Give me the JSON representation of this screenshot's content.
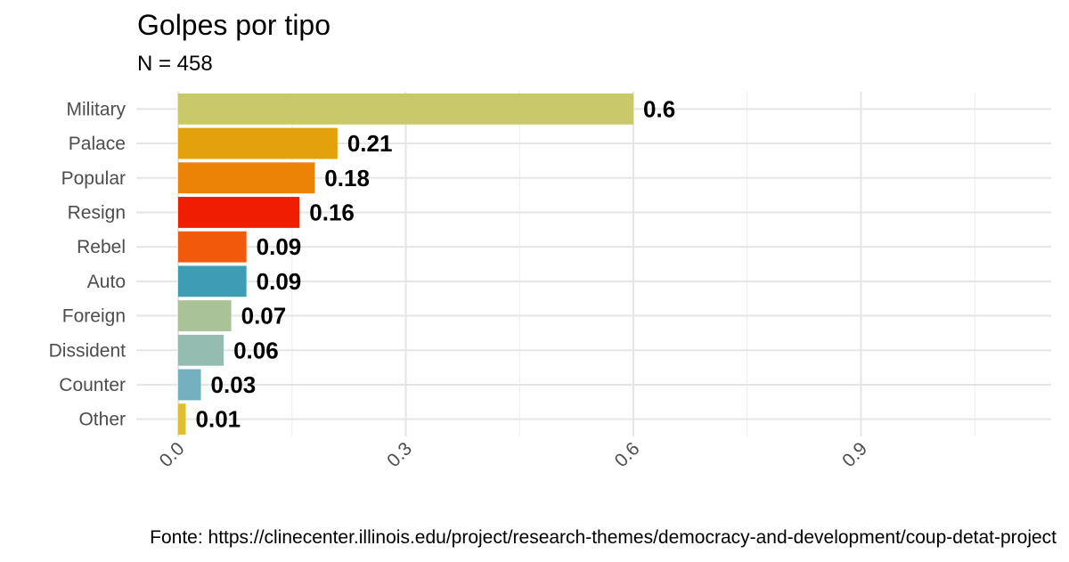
{
  "title": "Golpes por tipo",
  "subtitle": "N = 458",
  "caption": "Fonte: https://clinecenter.illinois.edu/project/research-themes/democracy-and-development/coup-detat-project",
  "chart_data": {
    "type": "bar",
    "orientation": "horizontal",
    "categories": [
      "Military",
      "Palace",
      "Popular",
      "Resign",
      "Rebel",
      "Auto",
      "Foreign",
      "Dissident",
      "Counter",
      "Other"
    ],
    "values": [
      0.6,
      0.21,
      0.18,
      0.16,
      0.09,
      0.09,
      0.07,
      0.06,
      0.03,
      0.01
    ],
    "data_labels": [
      "0.6",
      "0.21",
      "0.18",
      "0.16",
      "0.09",
      "0.09",
      "0.07",
      "0.06",
      "0.03",
      "0.01"
    ],
    "colors": [
      "#C9C96A",
      "#E3A20C",
      "#EA8306",
      "#F01E00",
      "#F05A0A",
      "#3C9DB5",
      "#AAC298",
      "#94BCB0",
      "#72B0C0",
      "#E2BE2E"
    ],
    "xticks": [
      0.0,
      0.3,
      0.6,
      0.9
    ],
    "xtick_labels": [
      "0.0",
      "0.3",
      "0.6",
      "0.9"
    ],
    "xlim": [
      0,
      1.1
    ],
    "grid": true,
    "title": "Golpes por tipo",
    "subtitle": "N = 458",
    "xlabel": "",
    "ylabel": ""
  }
}
